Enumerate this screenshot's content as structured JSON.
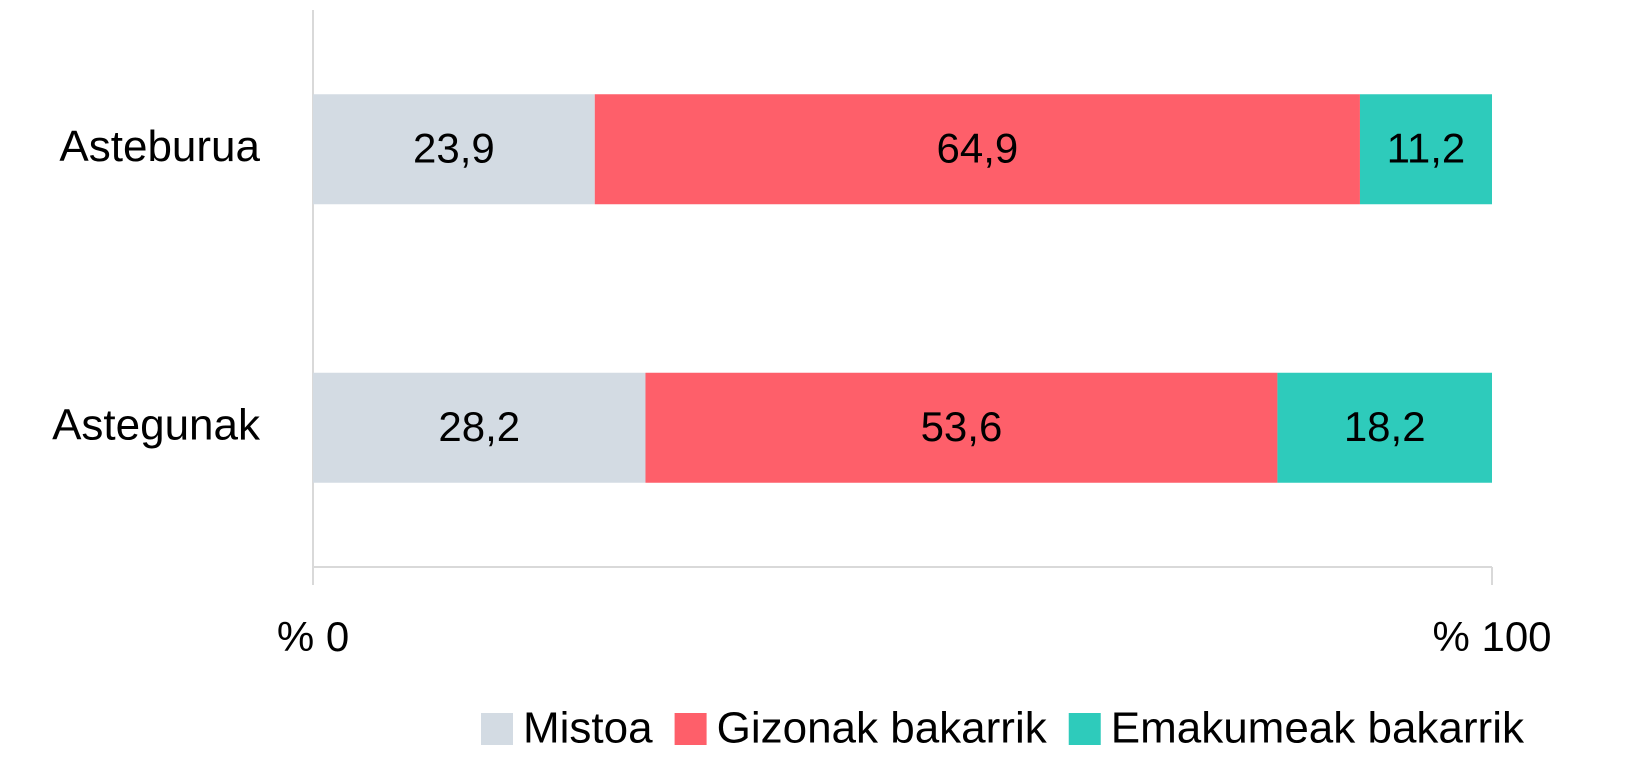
{
  "chart_data": {
    "type": "stacked_bar_horizontal",
    "categories": [
      "Asteburua",
      "Astegunak"
    ],
    "series": [
      {
        "name": "Mistoa",
        "color": "#d3dbe3",
        "values": [
          23.9,
          28.2
        ],
        "value_labels": [
          "23,9",
          "28,2"
        ]
      },
      {
        "name": "Gizonak bakarrik",
        "color": "#fe5f6a",
        "values": [
          64.9,
          53.6
        ],
        "value_labels": [
          "64,9",
          "53,6"
        ]
      },
      {
        "name": "Emakumeak bakarrik",
        "color": "#2ecbbb",
        "values": [
          11.2,
          18.2
        ],
        "value_labels": [
          "11,2",
          "18,2"
        ]
      }
    ],
    "xlim": [
      0,
      100
    ],
    "xticks": [
      {
        "value": 0,
        "label": "% 0"
      },
      {
        "value": 100,
        "label": "% 100"
      }
    ],
    "legend": "bottom"
  }
}
